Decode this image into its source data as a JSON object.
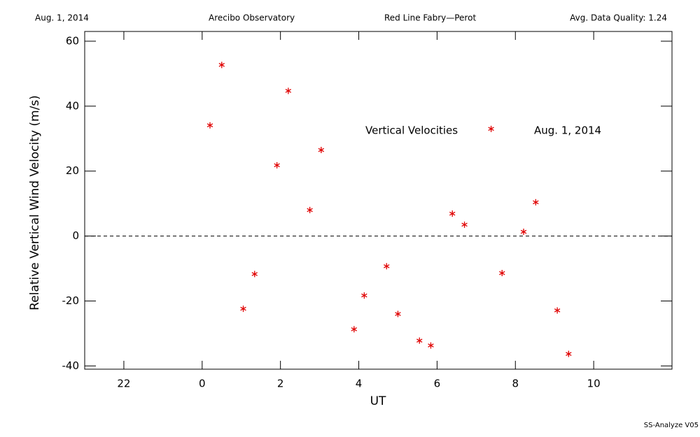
{
  "chart_data": {
    "type": "scatter",
    "header": [
      "Aug. 1, 2014",
      "Arecibo Observatory",
      "Red Line Fabry—Perot",
      "Avg. Data Quality: 1.24"
    ],
    "xlabel": "UT",
    "ylabel": "Relative Vertical Wind Velocity (m/s)",
    "annotations": [
      "Vertical Velocities",
      "Aug. 1, 2014"
    ],
    "footer": "SS-Analyze V05",
    "color": "#e00000",
    "reference_line": 0,
    "xlim": [
      -3,
      12
    ],
    "ylim": [
      -41,
      63
    ],
    "xticks": [
      {
        "value": -2,
        "label": "22"
      },
      0,
      2,
      4,
      6,
      8,
      10
    ],
    "yticks": [
      -40,
      -20,
      0,
      20,
      40,
      60
    ],
    "x": [
      0.2,
      0.5,
      1.05,
      1.34,
      1.91,
      2.2,
      2.75,
      3.04,
      3.88,
      4.14,
      4.71,
      5.0,
      5.55,
      5.84,
      6.39,
      6.7,
      7.38,
      7.66,
      8.21,
      8.52,
      9.07,
      9.36
    ],
    "values": [
      34.1,
      52.7,
      -22.4,
      -11.7,
      21.8,
      44.7,
      8.0,
      26.5,
      -28.7,
      -18.3,
      -9.3,
      -24.0,
      -32.2,
      -33.7,
      6.9,
      3.5,
      33.0,
      -11.4,
      1.3,
      10.4,
      -22.9,
      -36.3
    ]
  }
}
